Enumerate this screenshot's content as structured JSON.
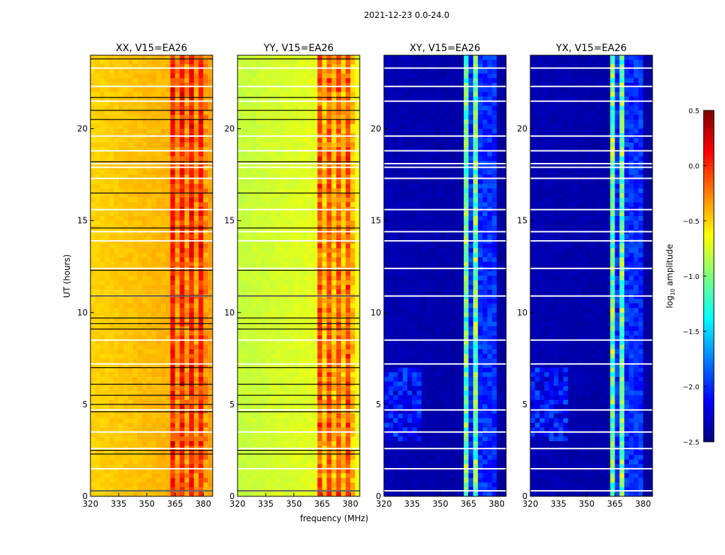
{
  "chart_data": {
    "type": "heatmap",
    "suptitle": "2021-12-23 0.0-24.0",
    "xlabel": "frequency (MHz)",
    "ylabel": "UT (hours)",
    "xlim": [
      320,
      385
    ],
    "ylim": [
      0,
      24
    ],
    "xticks": [
      "320",
      "335",
      "350",
      "365",
      "380"
    ],
    "xtick_values": [
      320,
      335,
      350,
      365,
      380
    ],
    "yticks": [
      "0",
      "5",
      "10",
      "15",
      "20"
    ],
    "ytick_values": [
      0,
      5,
      10,
      15,
      20
    ],
    "colorbar": {
      "label": "log10 amplitude",
      "label_main": "log",
      "label_sub": "10",
      "label_rest": " amplitude",
      "range": [
        -2.5,
        0.5
      ],
      "ticks": [
        "0.5",
        "0.0",
        "−0.5",
        "−1.0",
        "−1.5",
        "−2.0",
        "−2.5"
      ],
      "tick_values": [
        0.5,
        0.0,
        -0.5,
        -1.0,
        -1.5,
        -2.0,
        -2.5
      ],
      "colormap": "jet"
    },
    "panels": [
      {
        "title": "XX, V15=EA26",
        "background_left": -0.5,
        "background_right": -0.35,
        "band_mhz": [
          362,
          382
        ],
        "band_level": 0.05,
        "band_gap_mhz": [
          366,
          371,
          376,
          381
        ],
        "gap_level": -0.3
      },
      {
        "title": "YY, V15=EA26",
        "background_left": -0.8,
        "background_right": -0.65,
        "band_mhz": [
          362,
          382
        ],
        "band_level": -0.1,
        "band_gap_mhz": [
          366,
          371,
          376,
          381
        ],
        "gap_level": -0.45
      },
      {
        "title": "XY, V15=EA26",
        "background_left": -2.35,
        "background_right": -2.4,
        "band_mhz": [
          362,
          381
        ],
        "band_level": -1.05,
        "band_gap_mhz": [
          366,
          371,
          375,
          379
        ],
        "gap_level": -2.0
      },
      {
        "title": "YX, V15=EA26",
        "background_left": -2.35,
        "background_right": -2.4,
        "band_mhz": [
          362,
          381
        ],
        "band_level": -1.05,
        "band_gap_mhz": [
          366,
          371,
          375,
          379
        ],
        "gap_level": -2.0
      }
    ],
    "flagged_white_ut": [
      0.3,
      1.5,
      2.6,
      3.5,
      4.7,
      7.2,
      8.5,
      10.9,
      12.4,
      13.9,
      14.4,
      15.6,
      17.3,
      17.9,
      18.1,
      18.8,
      19.6,
      21.5,
      22.3,
      23.3
    ],
    "black_line_ut": [
      0.3,
      2.3,
      2.5,
      4.6,
      5.0,
      5.5,
      6.1,
      7.0,
      9.1,
      9.4,
      9.7,
      10.9,
      12.3,
      14.6,
      16.5,
      18.2,
      20.5,
      21.0,
      21.7,
      23.8
    ]
  }
}
